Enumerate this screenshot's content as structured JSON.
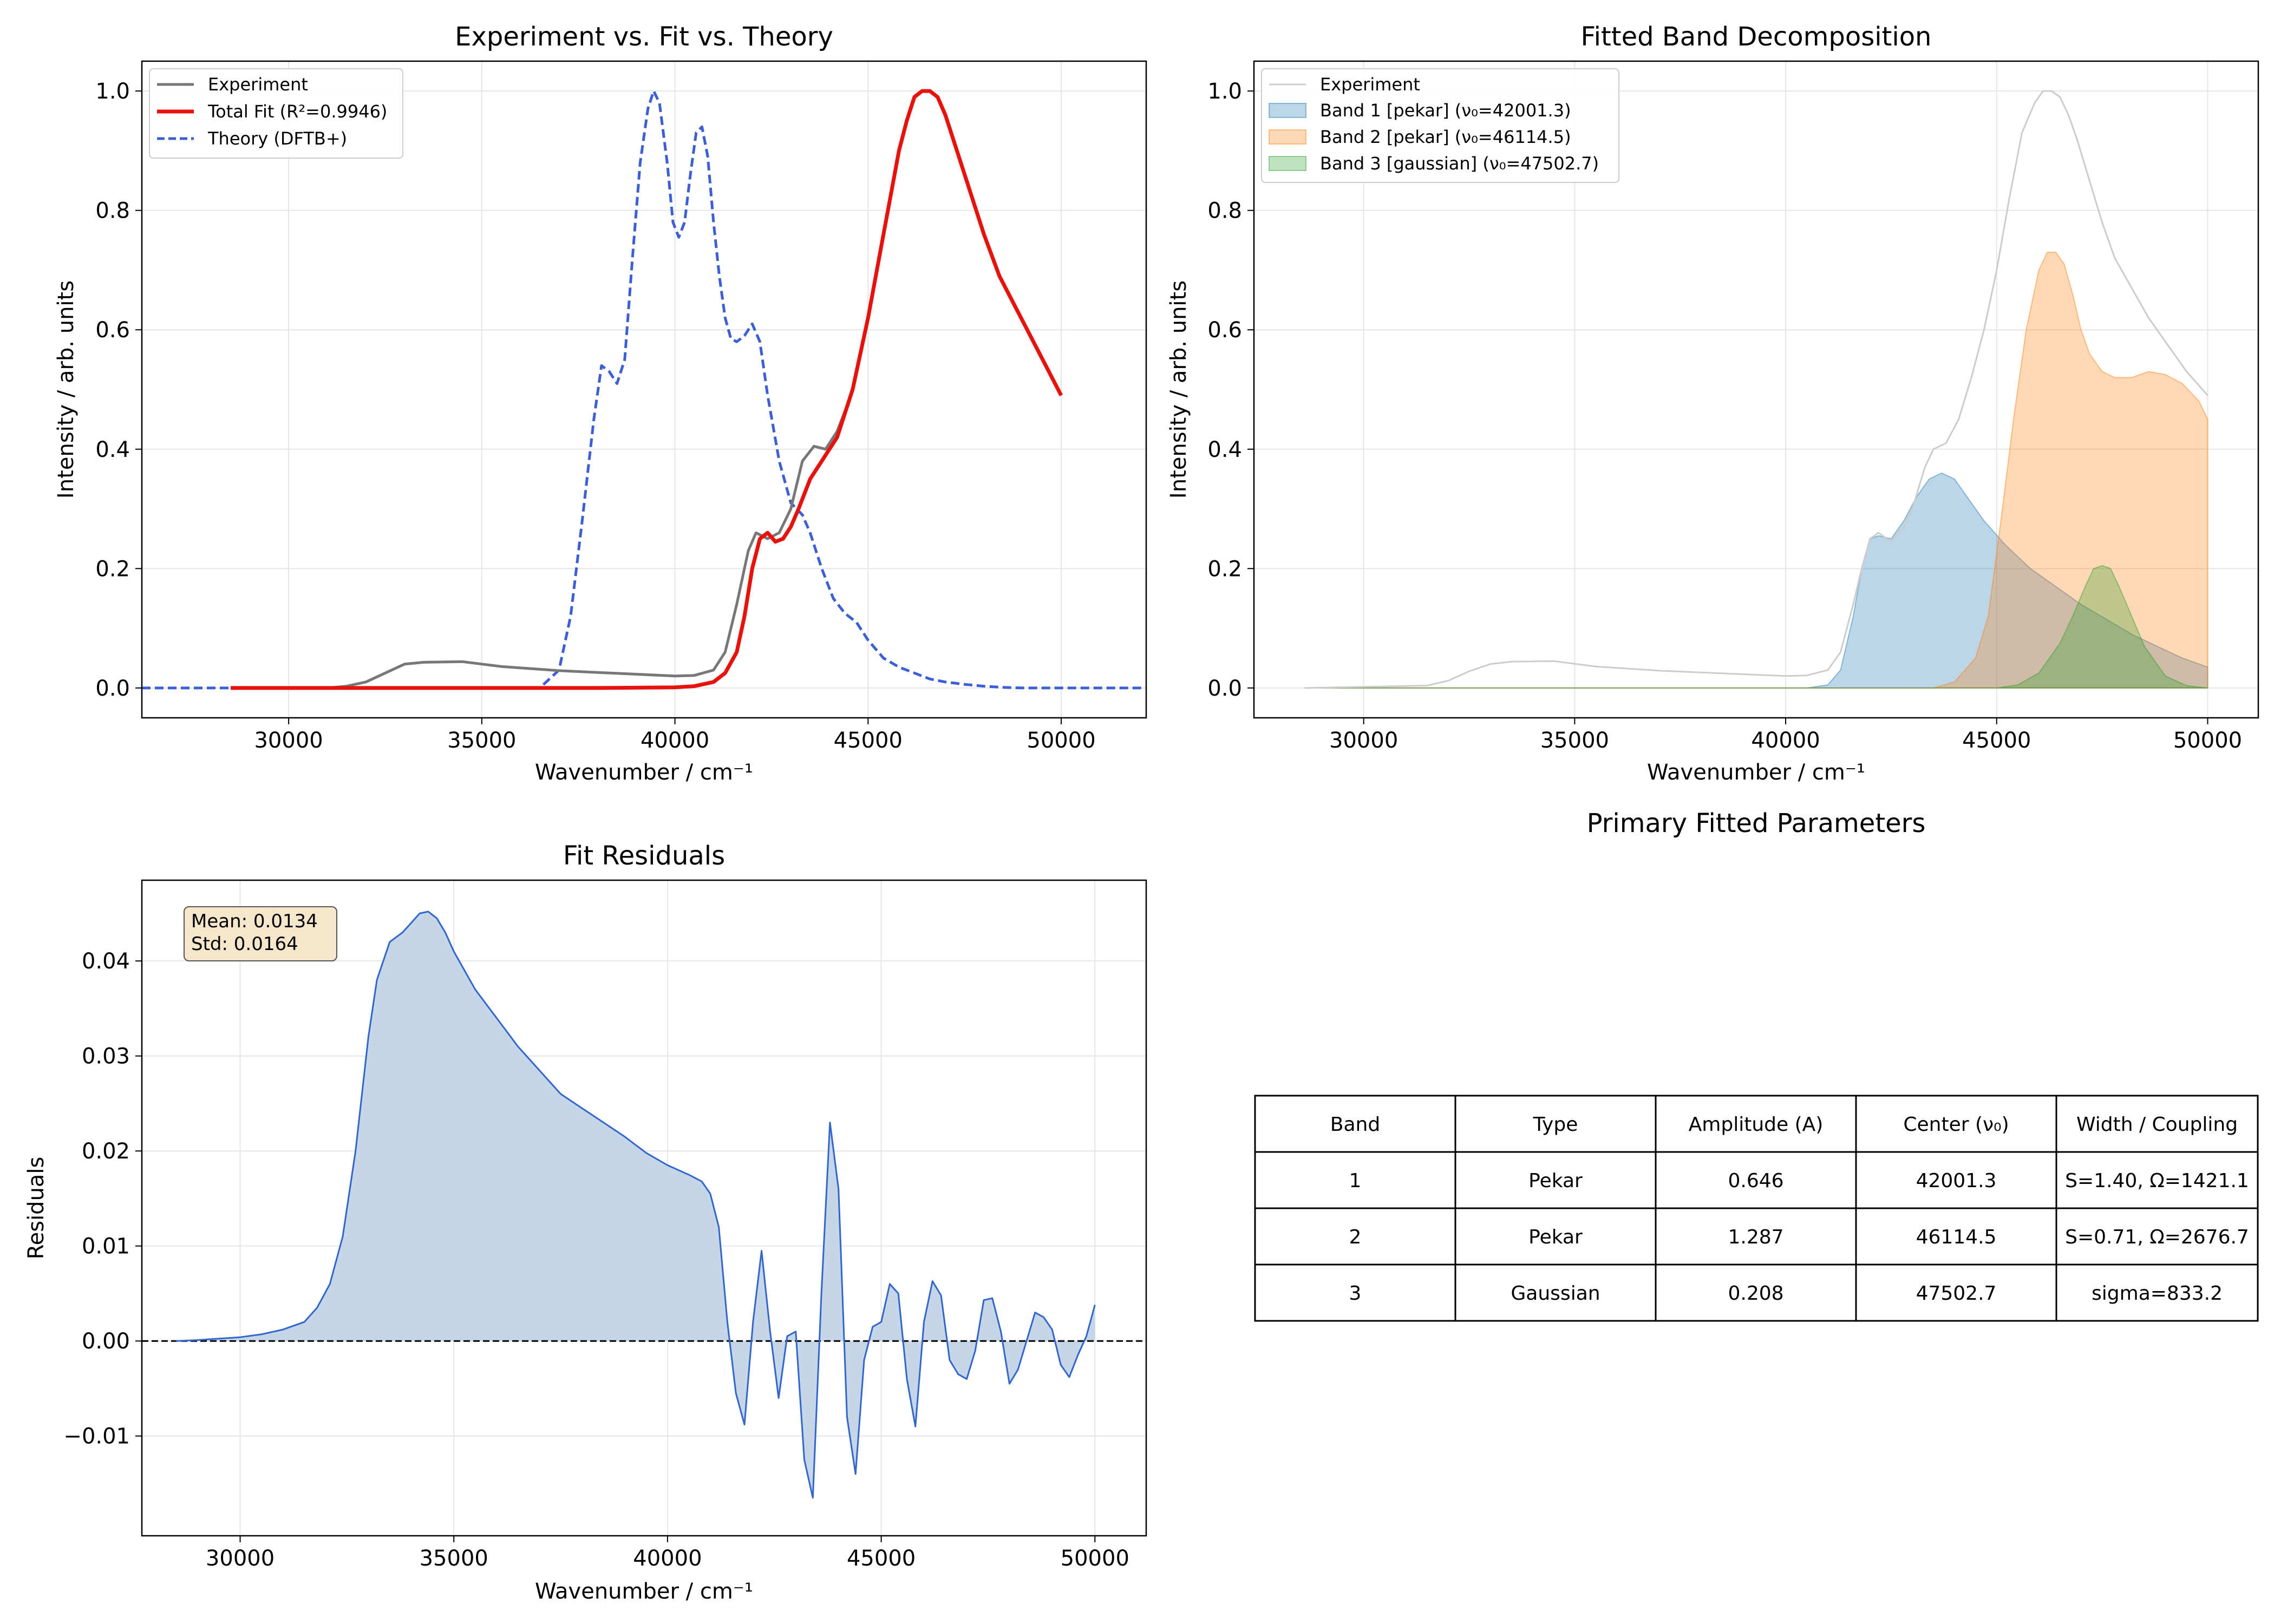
{
  "chart_data": [
    {
      "type": "line",
      "title": "Experiment vs. Fit vs. Theory",
      "xlabel": "Wavenumber / cm⁻¹",
      "ylabel": "Intensity / arb. units",
      "xlim": [
        26200,
        52200
      ],
      "ylim": [
        -0.05,
        1.05
      ],
      "xticks": [
        "30000",
        "35000",
        "40000",
        "45000",
        "50000"
      ],
      "yticks": [
        "0.0",
        "0.2",
        "0.4",
        "0.6",
        "0.8",
        "1.0"
      ],
      "grid": true,
      "legend_position": "upper-left",
      "series": [
        {
          "name": "Experiment",
          "color": "#777777",
          "style": "solid",
          "x": [
            28500,
            31000,
            31500,
            32000,
            32500,
            33000,
            33500,
            34500,
            35500,
            37000,
            38000,
            39000,
            40000,
            40500,
            41000,
            41300,
            41600,
            41900,
            42100,
            42400,
            42700,
            43000,
            43300,
            43600,
            43900,
            44200,
            44500
          ],
          "y": [
            0.0,
            0.0,
            0.003,
            0.01,
            0.025,
            0.04,
            0.043,
            0.044,
            0.036,
            0.029,
            0.026,
            0.023,
            0.02,
            0.021,
            0.03,
            0.06,
            0.14,
            0.23,
            0.26,
            0.25,
            0.26,
            0.3,
            0.38,
            0.405,
            0.4,
            0.43,
            0.48
          ]
        },
        {
          "name": "Total Fit (R²=0.9946)",
          "color": "#e8120d",
          "style": "solid",
          "x": [
            28500,
            30000,
            32000,
            35000,
            38000,
            40000,
            40500,
            41000,
            41300,
            41600,
            41800,
            42000,
            42200,
            42400,
            42600,
            42800,
            43000,
            43200,
            43500,
            43800,
            44200,
            44600,
            45000,
            45400,
            45800,
            46000,
            46200,
            46400,
            46600,
            46800,
            47000,
            47300,
            47600,
            48000,
            48400,
            48800,
            49200,
            49600,
            50000
          ],
          "y": [
            0.0,
            0.0,
            0.0,
            0.0,
            0.0,
            0.001,
            0.003,
            0.01,
            0.025,
            0.06,
            0.12,
            0.2,
            0.25,
            0.26,
            0.245,
            0.25,
            0.27,
            0.3,
            0.35,
            0.38,
            0.42,
            0.5,
            0.62,
            0.76,
            0.9,
            0.95,
            0.99,
            1.0,
            1.0,
            0.99,
            0.96,
            0.9,
            0.84,
            0.76,
            0.69,
            0.64,
            0.59,
            0.54,
            0.49
          ]
        },
        {
          "name": "Theory (DFTB+)",
          "color": "#3d5fd6",
          "style": "dashed",
          "x": [
            26200,
            34000,
            36500,
            37000,
            37300,
            37600,
            37900,
            38100,
            38300,
            38500,
            38700,
            38900,
            39100,
            39300,
            39450,
            39600,
            39800,
            39950,
            40100,
            40250,
            40400,
            40550,
            40700,
            40850,
            41000,
            41150,
            41300,
            41450,
            41600,
            41800,
            42000,
            42200,
            42400,
            42700,
            43000,
            43300,
            43500,
            43800,
            44100,
            44400,
            44700,
            45000,
            45400,
            45800,
            46200,
            46600,
            47000,
            47500,
            48000,
            48500,
            49000,
            50000,
            52200
          ],
          "y": [
            0.0,
            0.0,
            0.0,
            0.03,
            0.12,
            0.28,
            0.45,
            0.54,
            0.53,
            0.51,
            0.55,
            0.72,
            0.88,
            0.97,
            1.0,
            0.98,
            0.88,
            0.78,
            0.755,
            0.78,
            0.86,
            0.93,
            0.94,
            0.89,
            0.78,
            0.69,
            0.62,
            0.585,
            0.58,
            0.59,
            0.61,
            0.58,
            0.49,
            0.38,
            0.31,
            0.29,
            0.26,
            0.2,
            0.15,
            0.125,
            0.11,
            0.08,
            0.05,
            0.035,
            0.025,
            0.015,
            0.01,
            0.006,
            0.003,
            0.001,
            0.0,
            0.0,
            0.0
          ]
        }
      ]
    },
    {
      "type": "area",
      "title": "Fitted Band Decomposition",
      "xlabel": "Wavenumber / cm⁻¹",
      "ylabel": "Intensity / arb. units",
      "xlim": [
        27400,
        51200
      ],
      "ylim": [
        -0.05,
        1.05
      ],
      "xticks": [
        "30000",
        "35000",
        "40000",
        "45000",
        "50000"
      ],
      "yticks": [
        "0.0",
        "0.2",
        "0.4",
        "0.6",
        "0.8",
        "1.0"
      ],
      "grid": true,
      "legend_position": "upper-left",
      "series": [
        {
          "name": "Experiment",
          "color": "#cccccc",
          "style": "line",
          "x": [
            28600,
            31500,
            32000,
            32500,
            33000,
            33500,
            34500,
            35500,
            37000,
            38000,
            39000,
            40000,
            40500,
            41000,
            41300,
            41600,
            41800,
            42000,
            42200,
            42500,
            42800,
            43000,
            43300,
            43500,
            43800,
            44100,
            44400,
            44700,
            45000,
            45300,
            45600,
            45900,
            46100,
            46300,
            46500,
            46700,
            46900,
            47200,
            47500,
            47800,
            48200,
            48600,
            49000,
            49500,
            50000
          ],
          "y": [
            0.0,
            0.004,
            0.012,
            0.028,
            0.04,
            0.044,
            0.045,
            0.036,
            0.029,
            0.026,
            0.023,
            0.02,
            0.021,
            0.03,
            0.06,
            0.14,
            0.2,
            0.25,
            0.26,
            0.245,
            0.27,
            0.3,
            0.37,
            0.4,
            0.41,
            0.45,
            0.52,
            0.6,
            0.7,
            0.82,
            0.93,
            0.98,
            1.0,
            1.0,
            0.99,
            0.96,
            0.92,
            0.85,
            0.78,
            0.72,
            0.67,
            0.62,
            0.58,
            0.53,
            0.49
          ]
        },
        {
          "name": "Band 1 [pekar] (ν₀=42001.3)",
          "color": "#1f77b4",
          "style": "fill",
          "x": [
            28600,
            40500,
            41000,
            41300,
            41600,
            41800,
            42000,
            42200,
            42500,
            42800,
            43100,
            43400,
            43700,
            44000,
            44300,
            44700,
            45200,
            45800,
            46400,
            47000,
            47600,
            48200,
            48800,
            49400,
            50000
          ],
          "y": [
            0.0,
            0.0,
            0.005,
            0.03,
            0.12,
            0.2,
            0.25,
            0.255,
            0.25,
            0.28,
            0.32,
            0.35,
            0.36,
            0.35,
            0.32,
            0.28,
            0.24,
            0.2,
            0.17,
            0.14,
            0.115,
            0.09,
            0.07,
            0.05,
            0.035
          ]
        },
        {
          "name": "Band 2 [pekar] (ν₀=46114.5)",
          "color": "#ff7f0e",
          "style": "fill",
          "x": [
            28600,
            43500,
            44000,
            44500,
            44800,
            45100,
            45400,
            45700,
            46000,
            46200,
            46400,
            46600,
            46800,
            47000,
            47200,
            47500,
            47800,
            48200,
            48600,
            49000,
            49400,
            49800,
            50000
          ],
          "y": [
            0.0,
            0.0,
            0.01,
            0.05,
            0.12,
            0.28,
            0.45,
            0.6,
            0.7,
            0.73,
            0.73,
            0.71,
            0.66,
            0.6,
            0.56,
            0.53,
            0.52,
            0.52,
            0.53,
            0.525,
            0.51,
            0.48,
            0.45
          ]
        },
        {
          "name": "Band 3 [gaussian] (ν₀=47502.7)",
          "color": "#2ca02c",
          "style": "fill",
          "x": [
            28600,
            45000,
            45500,
            46000,
            46500,
            46800,
            47100,
            47300,
            47500,
            47700,
            47900,
            48200,
            48500,
            49000,
            49500,
            50000
          ],
          "y": [
            0.0,
            0.0,
            0.005,
            0.025,
            0.075,
            0.12,
            0.17,
            0.2,
            0.205,
            0.2,
            0.17,
            0.12,
            0.07,
            0.02,
            0.004,
            0.0
          ]
        }
      ]
    },
    {
      "type": "area",
      "title": "Fit Residuals",
      "xlabel": "Wavenumber / cm⁻¹",
      "ylabel": "Residuals",
      "xlim": [
        27700,
        51200
      ],
      "ylim": [
        -0.0205,
        0.0485
      ],
      "xticks": [
        "30000",
        "35000",
        "40000",
        "45000",
        "50000"
      ],
      "yticks": [
        "0.04",
        "0.03",
        "0.02",
        "0.01",
        "0.00",
        "−0.01"
      ],
      "grid": true,
      "reference_line": {
        "y": 0,
        "color": "#000000",
        "style": "dashed"
      },
      "annotation": [
        "Mean: 0.0134",
        "Std: 0.0164"
      ],
      "series": [
        {
          "name": "",
          "color": "#3366cc",
          "fill": "#c4d6e8",
          "x": [
            28500,
            29000,
            30000,
            30500,
            31000,
            31500,
            31800,
            32100,
            32400,
            32700,
            33000,
            33200,
            33500,
            33800,
            34000,
            34200,
            34400,
            34600,
            34800,
            35000,
            35500,
            36000,
            36500,
            37000,
            37500,
            38000,
            38500,
            39000,
            39500,
            40000,
            40500,
            40800,
            41000,
            41200,
            41400,
            41600,
            41800,
            42000,
            42200,
            42400,
            42600,
            42800,
            43000,
            43200,
            43400,
            43600,
            43800,
            44000,
            44200,
            44400,
            44600,
            44800,
            45000,
            45200,
            45400,
            45600,
            45800,
            46000,
            46200,
            46400,
            46600,
            46800,
            47000,
            47200,
            47400,
            47600,
            47800,
            48000,
            48200,
            48400,
            48600,
            48800,
            49000,
            49200,
            49400,
            49600,
            49800,
            50000
          ],
          "y": [
            0.0,
            0.0001,
            0.0004,
            0.0007,
            0.0012,
            0.002,
            0.0035,
            0.006,
            0.011,
            0.02,
            0.032,
            0.038,
            0.042,
            0.043,
            0.044,
            0.045,
            0.0452,
            0.0445,
            0.043,
            0.041,
            0.037,
            0.034,
            0.031,
            0.0285,
            0.026,
            0.0245,
            0.023,
            0.0215,
            0.0198,
            0.0185,
            0.0175,
            0.0168,
            0.0155,
            0.012,
            0.002,
            -0.0055,
            -0.0088,
            0.002,
            0.0095,
            0.001,
            -0.006,
            0.0005,
            0.001,
            -0.0125,
            -0.0165,
            0.005,
            0.023,
            0.016,
            -0.008,
            -0.014,
            -0.002,
            0.0015,
            0.002,
            0.006,
            0.005,
            -0.004,
            -0.009,
            0.002,
            0.0063,
            0.0048,
            -0.002,
            -0.0035,
            -0.004,
            -0.001,
            0.0043,
            0.0045,
            0.001,
            -0.0045,
            -0.003,
            0.0,
            0.003,
            0.0025,
            0.0012,
            -0.0025,
            -0.0038,
            -0.0015,
            0.0005,
            0.0038
          ]
        }
      ]
    },
    {
      "type": "table",
      "title": "Primary Fitted Parameters",
      "columns": [
        "Band",
        "Type",
        "Amplitude (A)",
        "Center (ν₀)",
        "Width / Coupling"
      ],
      "rows": [
        [
          "1",
          "Pekar",
          "0.646",
          "42001.3",
          "S=1.40, Ω=1421.1"
        ],
        [
          "2",
          "Pekar",
          "1.287",
          "46114.5",
          "S=0.71, Ω=2676.7"
        ],
        [
          "3",
          "Gaussian",
          "0.208",
          "47502.7",
          "sigma=833.2"
        ]
      ]
    }
  ]
}
